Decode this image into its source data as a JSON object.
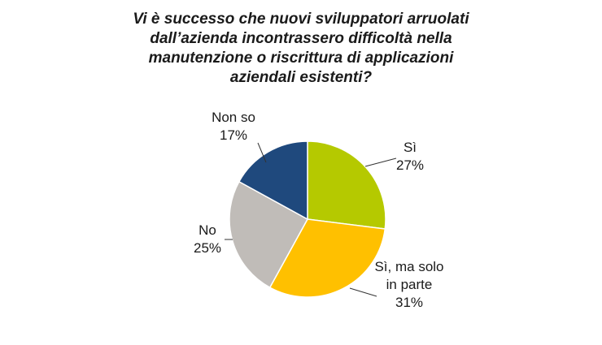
{
  "chart_data": {
    "type": "pie",
    "title_lines": [
      "Vi è successo che nuovi sviluppatori arruolati",
      "dall’azienda incontrassero difficoltà nella",
      "manutenzione o riscrittura di applicazioni",
      "aziendali esistenti?"
    ],
    "slices": [
      {
        "label": [
          "Sì"
        ],
        "value": 27,
        "value_text": "27%",
        "color": "#b5c900"
      },
      {
        "label": [
          "Sì, ma solo",
          "in parte"
        ],
        "value": 31,
        "value_text": "31%",
        "color": "#ffc000"
      },
      {
        "label": [
          "No"
        ],
        "value": 25,
        "value_text": "25%",
        "color": "#c0bcb8"
      },
      {
        "label": [
          "Non so"
        ],
        "value": 17,
        "value_text": "17%",
        "color": "#1f497d"
      }
    ],
    "start": "12 o'clock",
    "direction": "clockwise",
    "legend": "none"
  }
}
